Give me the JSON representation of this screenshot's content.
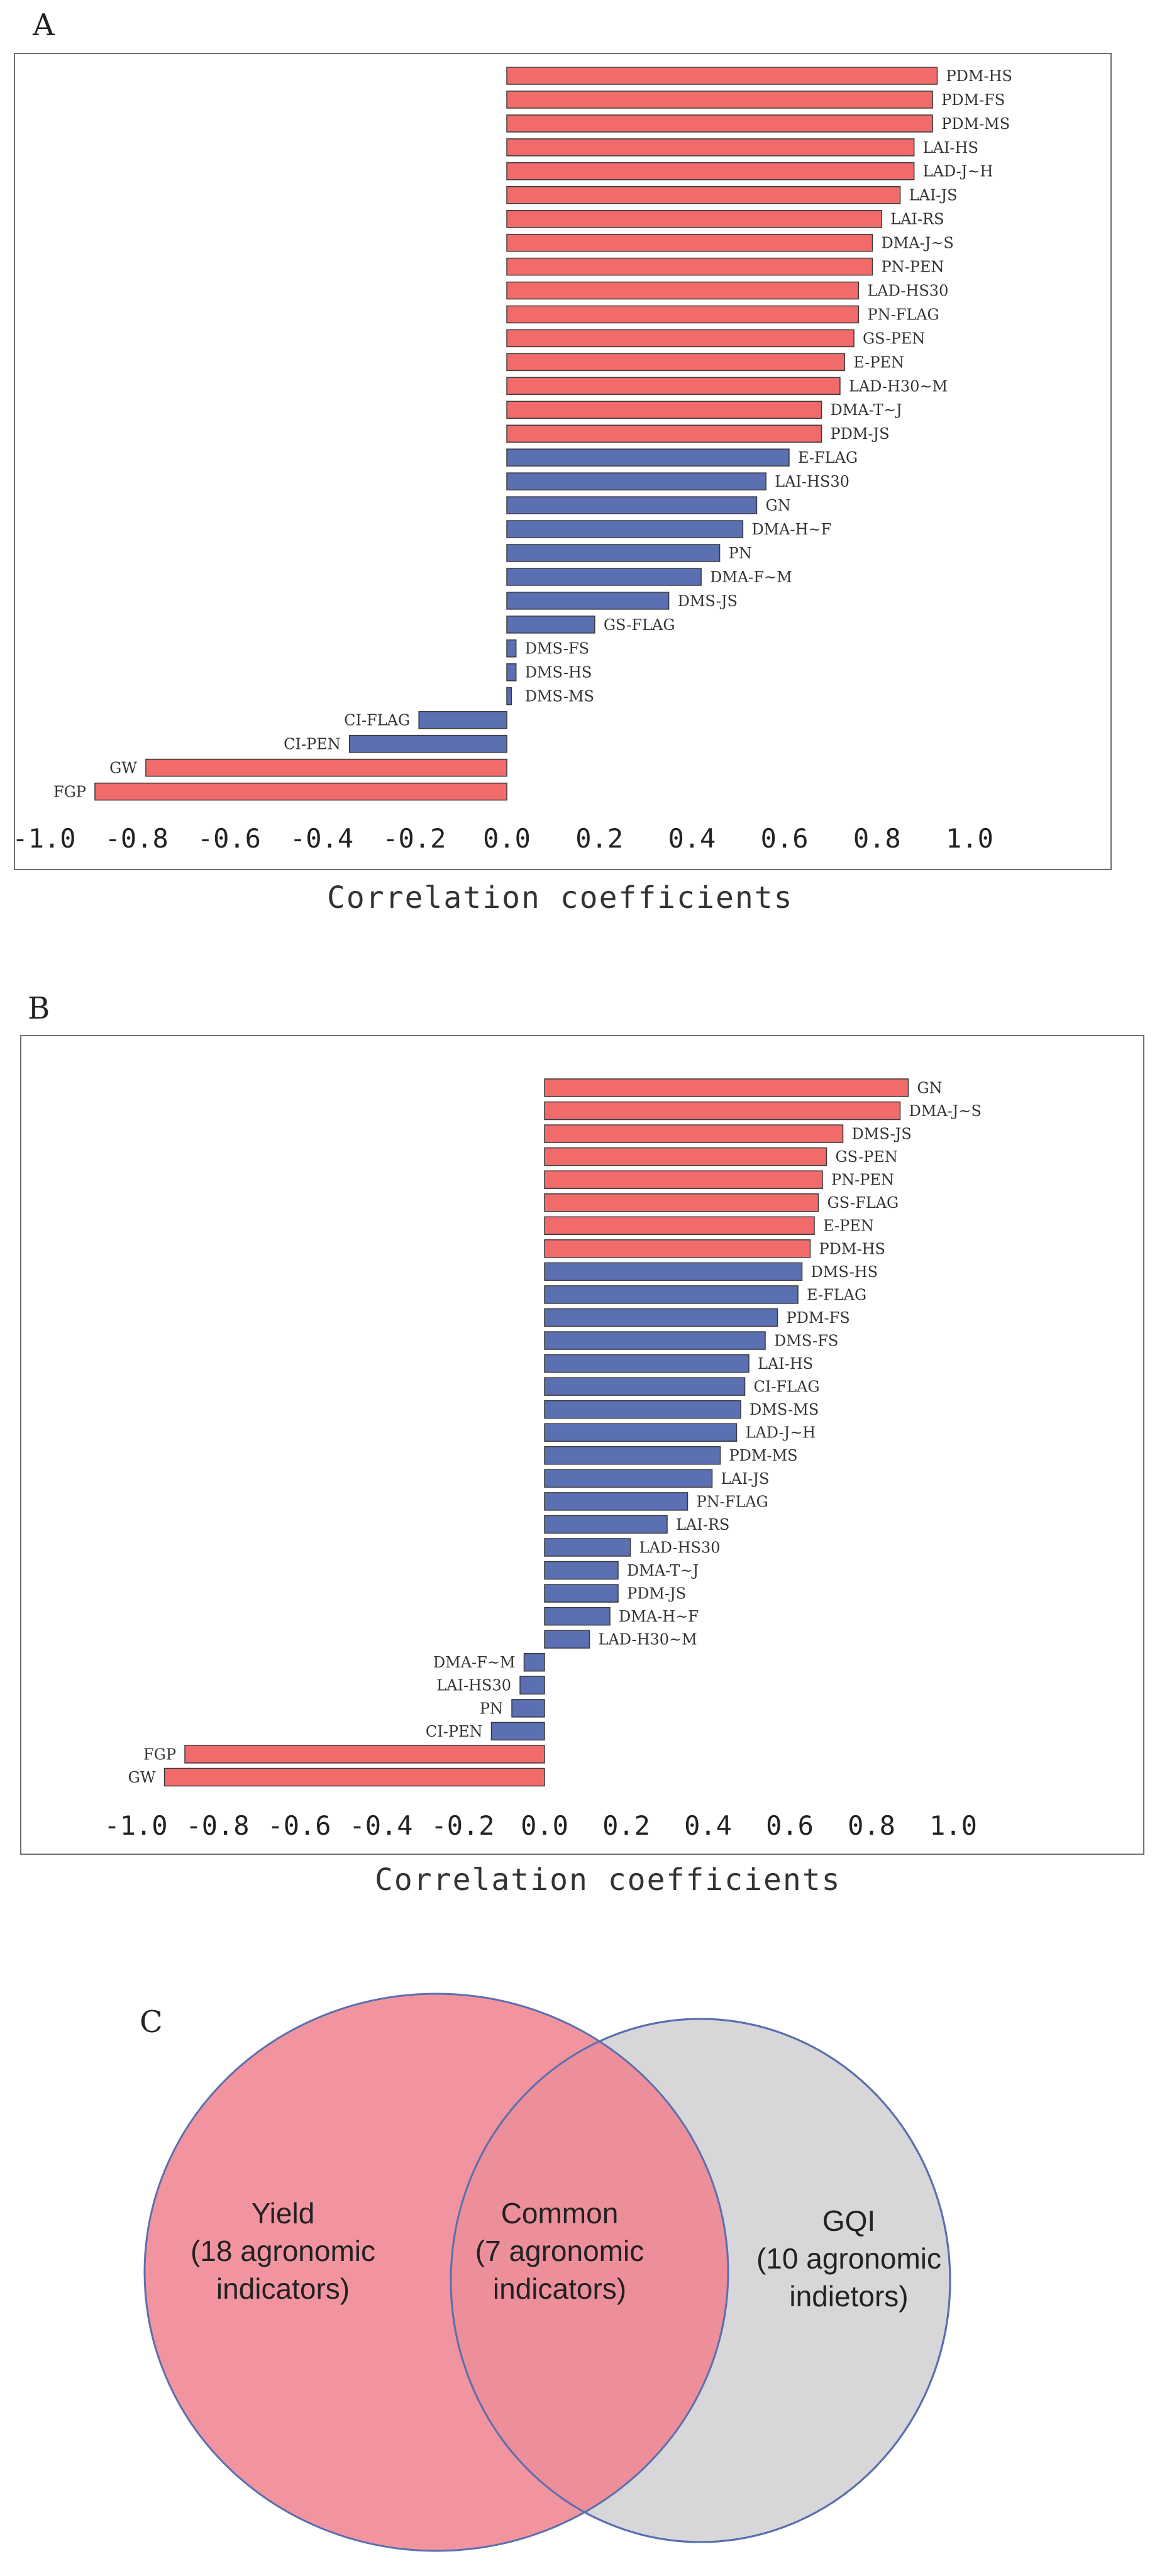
{
  "panels": {
    "a": "A",
    "b": "B",
    "c": "C"
  },
  "chart_data": [
    {
      "type": "bar",
      "orientation": "horizontal",
      "title": "A",
      "xlabel": "Correlation coefficients",
      "xlim": [
        -1.0,
        1.0
      ],
      "xticks": [
        "-1.0",
        "-0.8",
        "-0.6",
        "-0.4",
        "-0.2",
        "0.0",
        "0.2",
        "0.4",
        "0.6",
        "0.8",
        "1.0"
      ],
      "colors": {
        "red": "#f26b6b",
        "blue": "#5b6fb3"
      },
      "bars": [
        {
          "label": "PDM-HS",
          "value": 0.93,
          "color": "red"
        },
        {
          "label": "PDM-FS",
          "value": 0.92,
          "color": "red"
        },
        {
          "label": "PDM-MS",
          "value": 0.92,
          "color": "red"
        },
        {
          "label": "LAI-HS",
          "value": 0.88,
          "color": "red"
        },
        {
          "label": "LAD-J~H",
          "value": 0.88,
          "color": "red"
        },
        {
          "label": "LAI-JS",
          "value": 0.85,
          "color": "red"
        },
        {
          "label": "LAI-RS",
          "value": 0.81,
          "color": "red"
        },
        {
          "label": "DMA-J~S",
          "value": 0.79,
          "color": "red"
        },
        {
          "label": "PN-PEN",
          "value": 0.79,
          "color": "red"
        },
        {
          "label": "LAD-HS30",
          "value": 0.76,
          "color": "red"
        },
        {
          "label": "PN-FLAG",
          "value": 0.76,
          "color": "red"
        },
        {
          "label": "GS-PEN",
          "value": 0.75,
          "color": "red"
        },
        {
          "label": "E-PEN",
          "value": 0.73,
          "color": "red"
        },
        {
          "label": "LAD-H30~M",
          "value": 0.72,
          "color": "red"
        },
        {
          "label": "DMA-T~J",
          "value": 0.68,
          "color": "red"
        },
        {
          "label": "PDM-JS",
          "value": 0.68,
          "color": "red"
        },
        {
          "label": "E-FLAG",
          "value": 0.61,
          "color": "blue"
        },
        {
          "label": "LAI-HS30",
          "value": 0.56,
          "color": "blue"
        },
        {
          "label": "GN",
          "value": 0.54,
          "color": "blue"
        },
        {
          "label": "DMA-H~F",
          "value": 0.51,
          "color": "blue"
        },
        {
          "label": "PN",
          "value": 0.46,
          "color": "blue"
        },
        {
          "label": "DMA-F~M",
          "value": 0.42,
          "color": "blue"
        },
        {
          "label": "DMS-JS",
          "value": 0.35,
          "color": "blue"
        },
        {
          "label": "GS-FLAG",
          "value": 0.19,
          "color": "blue"
        },
        {
          "label": "DMS-FS",
          "value": 0.02,
          "color": "blue"
        },
        {
          "label": "DMS-HS",
          "value": 0.02,
          "color": "blue"
        },
        {
          "label": "DMS-MS",
          "value": 0.01,
          "color": "blue"
        },
        {
          "label": "CI-FLAG",
          "value": -0.19,
          "color": "blue"
        },
        {
          "label": "CI-PEN",
          "value": -0.34,
          "color": "blue"
        },
        {
          "label": "GW",
          "value": -0.78,
          "color": "red"
        },
        {
          "label": "FGP",
          "value": -0.89,
          "color": "red"
        }
      ]
    },
    {
      "type": "bar",
      "orientation": "horizontal",
      "title": "B",
      "xlabel": "Correlation coefficients",
      "xlim": [
        -1.0,
        1.0
      ],
      "xticks": [
        "-1.0",
        "-0.8",
        "-0.6",
        "-0.4",
        "-0.2",
        "0.0",
        "0.2",
        "0.4",
        "0.6",
        "0.8",
        "1.0"
      ],
      "colors": {
        "red": "#f26b6b",
        "blue": "#5b6fb3"
      },
      "bars": [
        {
          "label": "GN",
          "value": 0.89,
          "color": "red"
        },
        {
          "label": "DMA-J~S",
          "value": 0.87,
          "color": "red"
        },
        {
          "label": "DMS-JS",
          "value": 0.73,
          "color": "red"
        },
        {
          "label": "GS-PEN",
          "value": 0.69,
          "color": "red"
        },
        {
          "label": "PN-PEN",
          "value": 0.68,
          "color": "red"
        },
        {
          "label": "GS-FLAG",
          "value": 0.67,
          "color": "red"
        },
        {
          "label": "E-PEN",
          "value": 0.66,
          "color": "red"
        },
        {
          "label": "PDM-HS",
          "value": 0.65,
          "color": "red"
        },
        {
          "label": "DMS-HS",
          "value": 0.63,
          "color": "blue"
        },
        {
          "label": "E-FLAG",
          "value": 0.62,
          "color": "blue"
        },
        {
          "label": "PDM-FS",
          "value": 0.57,
          "color": "blue"
        },
        {
          "label": "DMS-FS",
          "value": 0.54,
          "color": "blue"
        },
        {
          "label": "LAI-HS",
          "value": 0.5,
          "color": "blue"
        },
        {
          "label": "CI-FLAG",
          "value": 0.49,
          "color": "blue"
        },
        {
          "label": "DMS-MS",
          "value": 0.48,
          "color": "blue"
        },
        {
          "label": "LAD-J~H",
          "value": 0.47,
          "color": "blue"
        },
        {
          "label": "PDM-MS",
          "value": 0.43,
          "color": "blue"
        },
        {
          "label": "LAI-JS",
          "value": 0.41,
          "color": "blue"
        },
        {
          "label": "PN-FLAG",
          "value": 0.35,
          "color": "blue"
        },
        {
          "label": "LAI-RS",
          "value": 0.3,
          "color": "blue"
        },
        {
          "label": "LAD-HS30",
          "value": 0.21,
          "color": "blue"
        },
        {
          "label": "DMA-T~J",
          "value": 0.18,
          "color": "blue"
        },
        {
          "label": "PDM-JS",
          "value": 0.18,
          "color": "blue"
        },
        {
          "label": "DMA-H~F",
          "value": 0.16,
          "color": "blue"
        },
        {
          "label": "LAD-H30~M",
          "value": 0.11,
          "color": "blue"
        },
        {
          "label": "DMA-F~M",
          "value": -0.05,
          "color": "blue"
        },
        {
          "label": "LAI-HS30",
          "value": -0.06,
          "color": "blue"
        },
        {
          "label": "PN",
          "value": -0.08,
          "color": "blue"
        },
        {
          "label": "CI-PEN",
          "value": -0.13,
          "color": "blue"
        },
        {
          "label": "FGP",
          "value": -0.88,
          "color": "red"
        },
        {
          "label": "GW",
          "value": -0.93,
          "color": "red"
        }
      ]
    }
  ],
  "venn": {
    "left": {
      "lines": [
        "Yield",
        "(18 agronomic",
        "indicators)"
      ],
      "color": "#f08592"
    },
    "center": {
      "lines": [
        "Common",
        "(7 agronomic",
        "indicators)"
      ]
    },
    "right": {
      "lines": [
        "GQI",
        "(10 agronomic",
        "indietors)"
      ],
      "color": "#d7d7d9"
    },
    "outline": "#5a6fb0"
  }
}
